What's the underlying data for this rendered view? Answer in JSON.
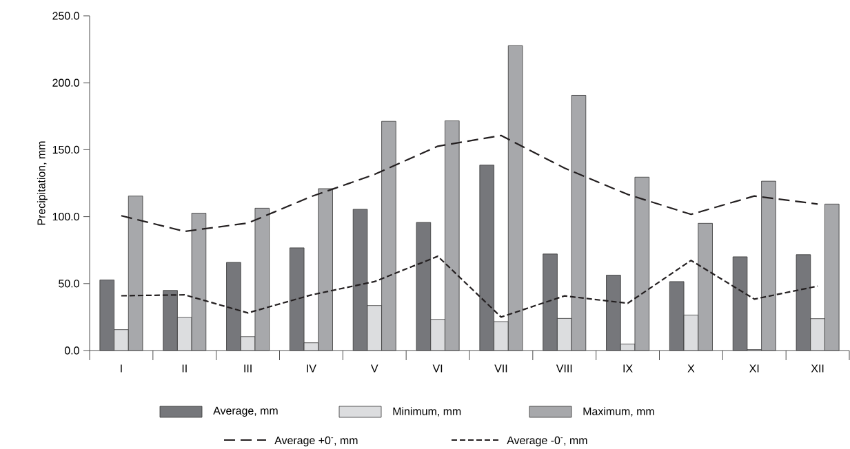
{
  "chart_data": {
    "type": "bar",
    "ylabel": "Precipitation, mm",
    "categories": [
      "I",
      "II",
      "III",
      "IV",
      "V",
      "VI",
      "VII",
      "VIII",
      "IX",
      "X",
      "XI",
      "XII"
    ],
    "series": [
      {
        "name": "Average, mm",
        "color": "#76777b",
        "values": [
          52.7,
          44.9,
          65.8,
          76.7,
          105.5,
          95.7,
          138.5,
          72.1,
          56.3,
          51.5,
          70.0,
          71.6
        ]
      },
      {
        "name": "Minimum, mm",
        "color": "#dcdddf",
        "values": [
          15.6,
          24.7,
          10.4,
          5.8,
          33.6,
          23.3,
          21.6,
          24.0,
          4.8,
          26.5,
          0.7,
          23.8
        ]
      },
      {
        "name": "Maximum, mm",
        "color": "#a7a8ab",
        "values": [
          115.4,
          102.6,
          106.3,
          120.9,
          171.2,
          171.6,
          227.7,
          190.6,
          129.5,
          95.0,
          126.5,
          109.4
        ]
      },
      {
        "name": "Average +0$^{-}$, mm",
        "type": "line",
        "line_style": "dashed",
        "color": "#231f20",
        "values": [
          100.7,
          89.0,
          95.2,
          115.0,
          131.5,
          152.6,
          160.6,
          136.3,
          116.6,
          101.7,
          115.4,
          109.4
        ]
      },
      {
        "name": "Average -0$^{-}$, mm",
        "type": "line",
        "line_style": "dotted",
        "color": "#231f20",
        "values": [
          40.9,
          41.6,
          28.1,
          41.5,
          51.5,
          70.4,
          25.0,
          40.8,
          35.3,
          67.3,
          38.4,
          48.1
        ]
      }
    ],
    "ylim": [
      0,
      250
    ],
    "yticks": [
      {
        "value": 0,
        "label": "0.0"
      },
      {
        "value": 50,
        "label": "50.0"
      },
      {
        "value": 100,
        "label": "100.0"
      },
      {
        "value": 150,
        "label": "150.0"
      },
      {
        "value": 200,
        "label": "200.0"
      },
      {
        "value": 250,
        "label": "250.0"
      }
    ],
    "legend": "bottom"
  }
}
